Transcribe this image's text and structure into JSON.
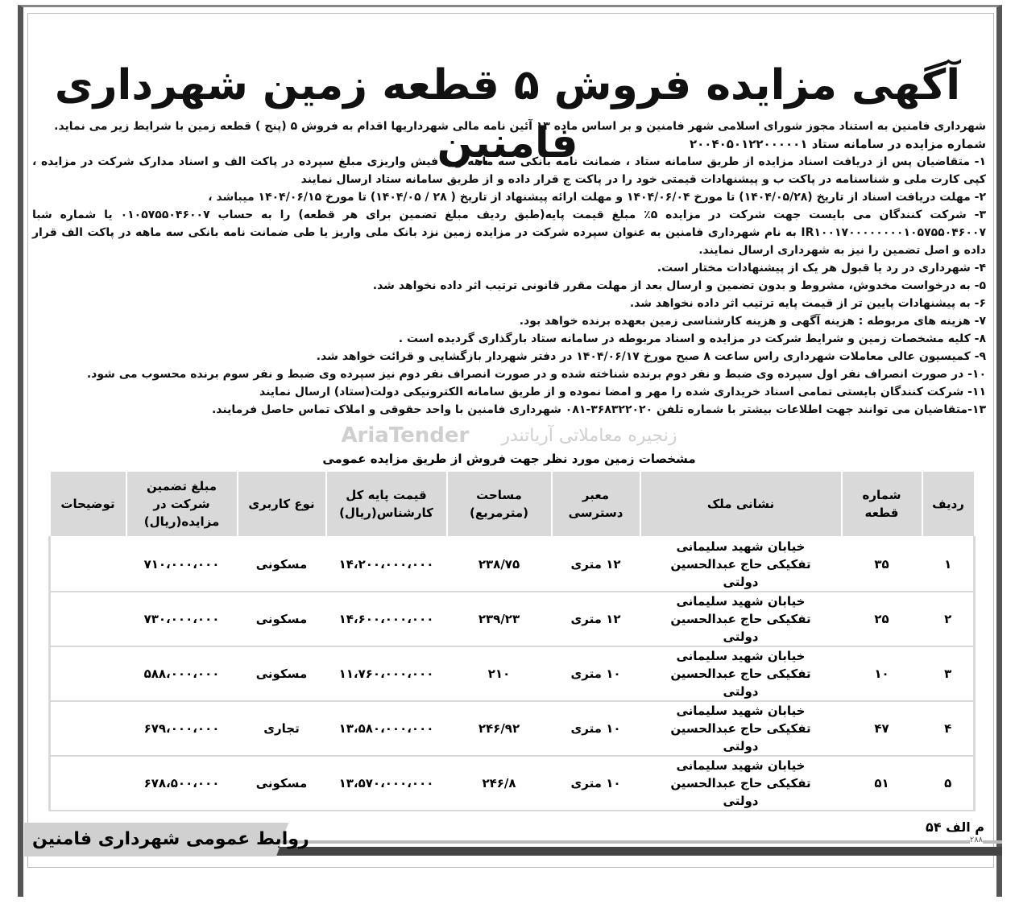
{
  "title": "آگهی مزایده فروش ۵ قطعه زمین شهرداری فامنین",
  "intro": "شهرداری فامنین به استناد مجوز شورای اسلامی شهر فامنین و بر اساس ماده ۱۳ آئین نامه مالی شهرداریها اقدام به فروش ۵ (پنج ) قطعه زمین با شرایط زیر می نماید.",
  "setad_number": "شماره مزایده در سامانه ستاد ۲۰۰۴۰۵۰۱۲۲۰۰۰۰۰۱",
  "clauses": [
    "۱- متقاضیان پس از دریافت اسناد مزایده از طریق سامانه ستاد ، ضمانت نامه بانکی سه ماهه و یا فیش واریزی مبلغ سپرده در پاکت الف و اسناد مدارک شرکت در مزایده ، کپی کارت ملی و شناسنامه در پاکت ب و پیشنهادات قیمتی خود را در پاکت ج قرار داده و از طریق سامانه ستاد ارسال نمایند",
    "۲- مهلت دریافت اسناد از تاریخ (۱۴۰۴/۰۵/۲۸) تا مورخ ۱۴۰۴/۰۶/۰۴ و مهلت ارائه پیشنهاد از تاریخ ( ۲۸ / ۱۴۰۴/۰۵) تا مورخ ۱۴۰۴/۰۶/۱۵ میباشد ،",
    "۳- شرکت کنندگان می بایست جهت شرکت در مزایده ۵٪ مبلغ قیمت پایه(طبق ردیف مبلغ تضمین برای هر قطعه) را به حساب ۰۱۰۵۷۵۵۰۴۶۰۰۷ یا شماره شبا IR۱۰۰۱۷۰۰۰۰۰۰۰۰۱۰۵۷۵۵۰۴۶۰۰۷ به نام شهرداری فامنین به عنوان سپرده شرکت در مزایده زمین نزد بانک ملی واریز یا طی ضمانت نامه بانکی سه ماهه در پاکت الف قرار داده و اصل تضمین را نیز به شهرداری ارسال نمایند.",
    "۴- شهرداری در رد یا قبول هر یک از پیشنهادات مختار است.",
    "۵- به درخواست مخدوش، مشروط و بدون تضمین و ارسال بعد از مهلت مقرر قانونی ترتیب اثر داده نخواهد شد.",
    "۶- به پیشنهادات پایین تر از قیمت پایه ترتیب اثر داده نخواهد شد.",
    "۷- هزینه های مربوطه : هزینه آگهی و هزینه کارشناسی زمین بعهده برنده خواهد بود.",
    "۸- کلیه مشخصات زمین و شرایط شرکت در مزایده و اسناد مربوطه در سامانه ستاد بارگذاری گردیده است .",
    "۹- کمیسیون عالی معاملات شهرداری راس ساعت ۸ صبح مورخ ۱۴۰۴/۰۶/۱۷ در دفتر شهردار بازگشایی و قرائت خواهد شد.",
    "۱۰- در صورت انصراف نفر اول سپرده وی ضبط و نفر دوم برنده شناخته شده و در صورت انصراف نفر دوم نیز سپرده وی ضبط و نفر سوم برنده محسوب می شود.",
    "۱۱- شرکت کنندگان بایستی تمامی اسناد خریداری شده را مهر و امضا نموده و از طریق سامانه الکترونیکی دولت(ستاد) ارسال نمایند",
    "۱۳-متقاضیان می توانند جهت اطلاعات بیشتر با شماره تلفن ۳۶۸۳۲۲۰۲۰-۰۸۱ شهرداری فامنین با واحد حقوقی و املاک تماس حاصل فرمایند."
  ],
  "table": {
    "title": "مشخصات زمین مورد نظر جهت فروش از طریق مزایده عمومی",
    "headers": [
      "ردیف",
      "شماره قطعه",
      "نشانی ملک",
      "معبر دسترسی",
      "مساحت (مترمربع)",
      "قیمت پایه کل کارشناس(ریال)",
      "نوع کاربری",
      "مبلغ تضمین شرکت در مزایده(ریال)",
      "توضیحات"
    ],
    "rows": [
      [
        "۱",
        "۳۵",
        "خیابان شهید سلیمانی تفکیکی حاج عبدالحسین دولتی",
        "۱۲ متری",
        "۲۳۸/۷۵",
        "۱۴،۲۰۰،۰۰۰،۰۰۰",
        "مسکونی",
        "۷۱۰،۰۰۰،۰۰۰",
        ""
      ],
      [
        "۲",
        "۲۵",
        "خیابان شهید سلیمانی تفکیکی حاج عبدالحسین دولتی",
        "۱۲ متری",
        "۲۳۹/۲۳",
        "۱۴،۶۰۰،۰۰۰،۰۰۰",
        "مسکونی",
        "۷۳۰،۰۰۰،۰۰۰",
        ""
      ],
      [
        "۳",
        "۱۰",
        "خیابان شهید سلیمانی تفکیکی حاج عبدالحسین دولتی",
        "۱۰ متری",
        "۲۱۰",
        "۱۱،۷۶۰،۰۰۰،۰۰۰",
        "مسکونی",
        "۵۸۸،۰۰۰،۰۰۰",
        ""
      ],
      [
        "۴",
        "۴۷",
        "خیابان شهید سلیمانی تفکیکی حاج عبدالحسین دولتی",
        "۱۰ متری",
        "۲۴۶/۹۲",
        "۱۳،۵۸۰،۰۰۰،۰۰۰",
        "تجاری",
        "۶۷۹،۰۰۰،۰۰۰",
        ""
      ],
      [
        "۵",
        "۵۱",
        "خیابان شهید سلیمانی تفکیکی حاج عبدالحسین دولتی",
        "۱۰ متری",
        "۲۴۶/۸",
        "۱۳،۵۷۰،۰۰۰،۰۰۰",
        "مسکونی",
        "۶۷۸،۵۰۰،۰۰۰",
        ""
      ]
    ]
  },
  "footer": {
    "publisher": "روابط عمومی شهرداری فامنین",
    "issue": "م الف ۵۴",
    "page_no": "۲۸۸"
  },
  "watermark": {
    "logo": "AriaTender",
    "text": "زنجیره معاملاتی آریاتندر"
  }
}
